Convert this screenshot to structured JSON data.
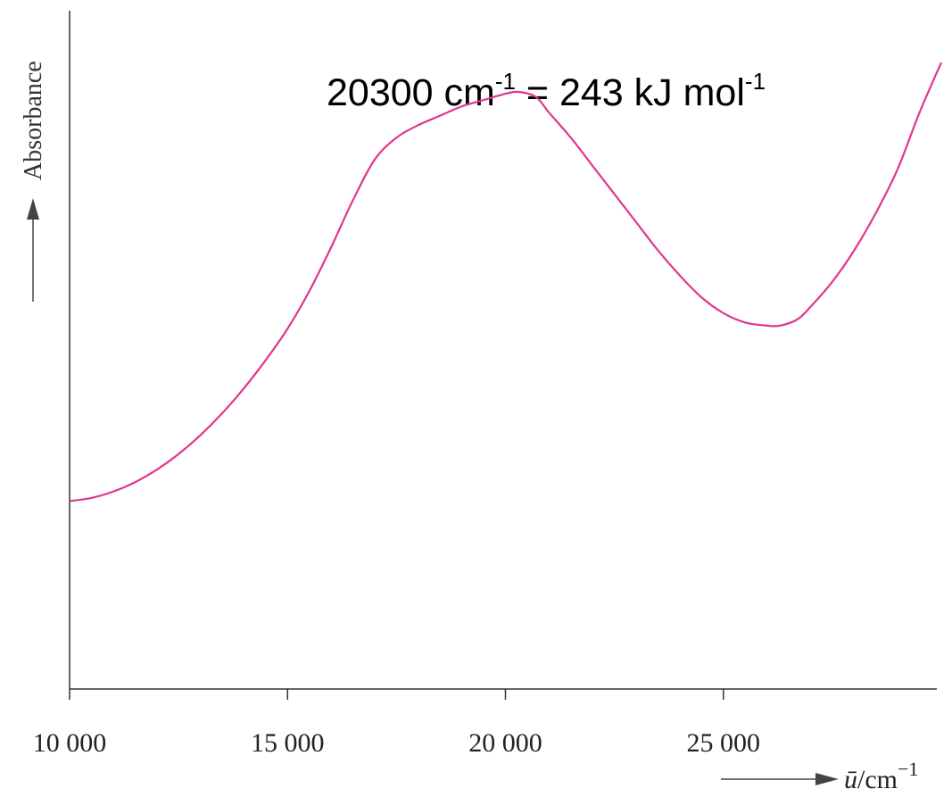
{
  "chart_data": {
    "type": "line",
    "title": "",
    "annotation": {
      "left": "20300 cm",
      "left_sup": "-1",
      "mid": " = 243 kJ mol",
      "right_sup": "-1"
    },
    "xlabel": {
      "symbol": "ū",
      "unit": "/cm",
      "sup": "−1"
    },
    "ylabel": "Absorbance",
    "xlim": [
      10000,
      30000
    ],
    "ylim": [
      0,
      1
    ],
    "grid": false,
    "xticks": [
      {
        "value": 10000,
        "label": "10 000"
      },
      {
        "value": 15000,
        "label": "15 000"
      },
      {
        "value": 20000,
        "label": "20 000"
      },
      {
        "value": 25000,
        "label": "25 000"
      }
    ],
    "series": [
      {
        "color": "#e0368f",
        "x": [
          10000,
          10500,
          11000,
          11500,
          12000,
          12500,
          13000,
          13500,
          14000,
          14500,
          15000,
          15500,
          16000,
          16500,
          17000,
          17500,
          18000,
          18500,
          19000,
          19500,
          20000,
          20300,
          20700,
          21000,
          21500,
          22000,
          22500,
          23000,
          23500,
          24000,
          24500,
          25000,
          25500,
          26000,
          26300,
          26700,
          27000,
          27500,
          28000,
          28500,
          29000,
          29500,
          30000
        ],
        "y": [
          0.3,
          0.305,
          0.315,
          0.33,
          0.35,
          0.375,
          0.405,
          0.44,
          0.48,
          0.525,
          0.575,
          0.635,
          0.705,
          0.78,
          0.845,
          0.88,
          0.9,
          0.915,
          0.93,
          0.94,
          0.95,
          0.953,
          0.945,
          0.92,
          0.88,
          0.835,
          0.79,
          0.745,
          0.7,
          0.66,
          0.625,
          0.6,
          0.585,
          0.58,
          0.58,
          0.59,
          0.61,
          0.65,
          0.7,
          0.76,
          0.83,
          0.92,
          1.0
        ]
      }
    ]
  }
}
